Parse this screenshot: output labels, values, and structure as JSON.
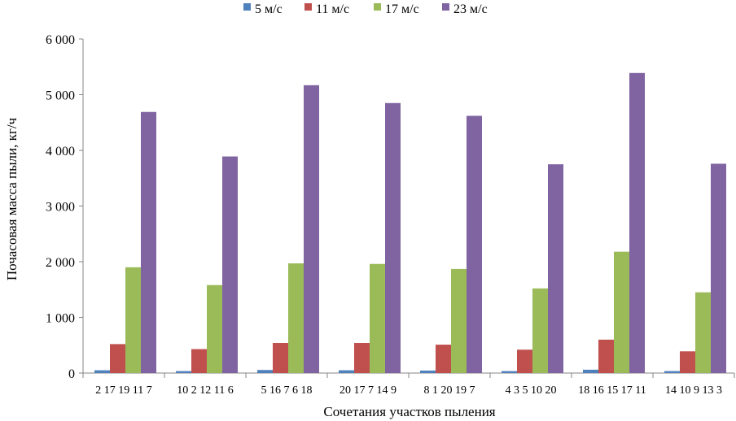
{
  "chart_data": {
    "type": "bar",
    "title": "",
    "xlabel": "Сочетания участков пыления",
    "ylabel": "Почасовая масса пыли, кг/ч",
    "ylim": [
      0,
      6000
    ],
    "yticks": [
      0,
      1000,
      2000,
      3000,
      4000,
      5000,
      6000
    ],
    "ytick_labels": [
      "0",
      "1 000",
      "2 000",
      "3 000",
      "4 000",
      "5 000",
      "6 000"
    ],
    "grid": false,
    "legend_position": "top",
    "categories": [
      "2 17 19 11 7",
      "10 2 12 11 6",
      "5 16 7 6 18",
      "20 17 7 14 9",
      "8 1 20 19 7",
      "4 3 5 10 20",
      "18 16 15 17 11",
      "14 10 9 13 3"
    ],
    "series": [
      {
        "name": "5 м/с",
        "color": "#4f81bd",
        "values": [
          50,
          35,
          55,
          50,
          45,
          35,
          60,
          35
        ]
      },
      {
        "name": "11 м/с",
        "color": "#c0504d",
        "values": [
          520,
          430,
          540,
          540,
          510,
          420,
          600,
          390
        ]
      },
      {
        "name": "17 м/с",
        "color": "#9bbb59",
        "values": [
          1900,
          1580,
          1970,
          1960,
          1870,
          1520,
          2180,
          1450
        ]
      },
      {
        "name": "23 м/с",
        "color": "#8064a2",
        "values": [
          4690,
          3890,
          5170,
          4850,
          4620,
          3750,
          5390,
          3760
        ]
      }
    ]
  }
}
